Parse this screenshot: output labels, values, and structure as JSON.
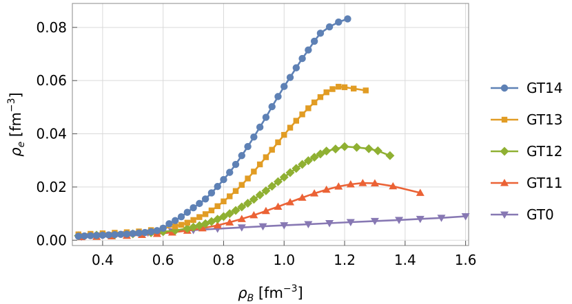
{
  "chart_data": {
    "type": "line",
    "xlabel": {
      "base": "ρ",
      "sub": "B",
      "unit_pre": " [fm",
      "unit_sup": "−3",
      "unit_post": "]"
    },
    "ylabel": {
      "base": "ρ",
      "sub": "e",
      "unit_pre": " [fm",
      "unit_sup": "−3",
      "unit_post": "]"
    },
    "xlim": [
      0.3,
      1.61
    ],
    "ylim": [
      -0.002,
      0.089
    ],
    "xticks": [
      0.4,
      0.6,
      0.8,
      1.0,
      1.2,
      1.4,
      1.6
    ],
    "xtick_labels": [
      "0.4",
      "0.6",
      "0.8",
      "1.0",
      "1.2",
      "1.4",
      "1.6"
    ],
    "yticks": [
      0.0,
      0.02,
      0.04,
      0.06,
      0.08
    ],
    "ytick_labels": [
      "0.00",
      "0.02",
      "0.04",
      "0.06",
      "0.08"
    ],
    "grid": true,
    "legend_position": "right",
    "series": [
      {
        "name": "GT14",
        "color": "#5e81b5",
        "marker": "circle",
        "x": [
          0.32,
          0.34,
          0.36,
          0.38,
          0.4,
          0.42,
          0.44,
          0.46,
          0.48,
          0.5,
          0.52,
          0.54,
          0.56,
          0.58,
          0.6,
          0.62,
          0.64,
          0.66,
          0.68,
          0.7,
          0.72,
          0.74,
          0.76,
          0.78,
          0.8,
          0.82,
          0.84,
          0.86,
          0.88,
          0.9,
          0.92,
          0.94,
          0.96,
          0.98,
          1.0,
          1.02,
          1.04,
          1.06,
          1.08,
          1.1,
          1.12,
          1.15,
          1.18,
          1.21
        ],
        "y": [
          0.0015,
          0.0016,
          0.0017,
          0.0018,
          0.0019,
          0.002,
          0.0021,
          0.0022,
          0.0023,
          0.0025,
          0.0027,
          0.0029,
          0.0032,
          0.0036,
          0.0045,
          0.0062,
          0.0074,
          0.0088,
          0.0105,
          0.0122,
          0.0138,
          0.0155,
          0.0178,
          0.0202,
          0.0228,
          0.0255,
          0.0285,
          0.0318,
          0.0352,
          0.0388,
          0.0425,
          0.0462,
          0.0502,
          0.054,
          0.0578,
          0.0612,
          0.0648,
          0.0683,
          0.0715,
          0.0748,
          0.0778,
          0.0802,
          0.082,
          0.0832
        ]
      },
      {
        "name": "GT13",
        "color": "#e19c24",
        "marker": "square",
        "x": [
          0.32,
          0.36,
          0.4,
          0.44,
          0.48,
          0.52,
          0.56,
          0.6,
          0.64,
          0.66,
          0.68,
          0.7,
          0.72,
          0.74,
          0.76,
          0.78,
          0.8,
          0.82,
          0.84,
          0.86,
          0.88,
          0.9,
          0.92,
          0.94,
          0.96,
          0.98,
          1.0,
          1.02,
          1.04,
          1.06,
          1.08,
          1.1,
          1.12,
          1.14,
          1.16,
          1.18,
          1.2,
          1.23,
          1.27
        ],
        "y": [
          0.0022,
          0.0024,
          0.0026,
          0.0028,
          0.003,
          0.0033,
          0.0038,
          0.0045,
          0.0052,
          0.0058,
          0.0066,
          0.0076,
          0.0087,
          0.0098,
          0.0112,
          0.0128,
          0.0146,
          0.0165,
          0.0185,
          0.0208,
          0.0232,
          0.0258,
          0.0285,
          0.0312,
          0.034,
          0.0368,
          0.0396,
          0.0423,
          0.0449,
          0.0473,
          0.0496,
          0.0518,
          0.0538,
          0.0556,
          0.0568,
          0.0577,
          0.0575,
          0.057,
          0.0563
        ]
      },
      {
        "name": "GT12",
        "color": "#8fb032",
        "marker": "diamond",
        "x": [
          0.32,
          0.38,
          0.44,
          0.5,
          0.56,
          0.6,
          0.64,
          0.68,
          0.7,
          0.72,
          0.74,
          0.76,
          0.78,
          0.8,
          0.82,
          0.84,
          0.86,
          0.88,
          0.9,
          0.92,
          0.94,
          0.96,
          0.98,
          1.0,
          1.02,
          1.04,
          1.06,
          1.08,
          1.1,
          1.12,
          1.14,
          1.17,
          1.2,
          1.24,
          1.28,
          1.31,
          1.35
        ],
        "y": [
          0.0017,
          0.0019,
          0.0021,
          0.0024,
          0.0028,
          0.0032,
          0.0037,
          0.0044,
          0.0049,
          0.0055,
          0.0062,
          0.007,
          0.0079,
          0.0089,
          0.01,
          0.0112,
          0.0125,
          0.0139,
          0.0154,
          0.017,
          0.0186,
          0.0203,
          0.022,
          0.0237,
          0.0254,
          0.027,
          0.0285,
          0.0299,
          0.0312,
          0.0324,
          0.0335,
          0.0343,
          0.0352,
          0.0349,
          0.0344,
          0.0336,
          0.0318
        ]
      },
      {
        "name": "GT11",
        "color": "#eb6235",
        "marker": "triangle-up",
        "x": [
          0.33,
          0.38,
          0.43,
          0.48,
          0.53,
          0.58,
          0.63,
          0.68,
          0.73,
          0.78,
          0.82,
          0.86,
          0.9,
          0.94,
          0.98,
          1.02,
          1.06,
          1.1,
          1.14,
          1.18,
          1.22,
          1.26,
          1.3,
          1.36,
          1.45
        ],
        "y": [
          0.0012,
          0.0013,
          0.0015,
          0.0017,
          0.002,
          0.0024,
          0.0029,
          0.0036,
          0.0045,
          0.0056,
          0.0067,
          0.008,
          0.0094,
          0.011,
          0.0126,
          0.0143,
          0.016,
          0.0176,
          0.019,
          0.0202,
          0.021,
          0.0215,
          0.0214,
          0.0203,
          0.0178
        ]
      },
      {
        "name": "GT0",
        "color": "#8778b3",
        "marker": "triangle-down",
        "x": [
          0.33,
          0.4,
          0.48,
          0.55,
          0.63,
          0.7,
          0.78,
          0.86,
          0.93,
          1.0,
          1.08,
          1.15,
          1.22,
          1.3,
          1.38,
          1.45,
          1.52,
          1.6
        ],
        "y": [
          0.0013,
          0.0018,
          0.0023,
          0.0028,
          0.0033,
          0.0038,
          0.0043,
          0.0048,
          0.0052,
          0.0056,
          0.006,
          0.0064,
          0.0068,
          0.0072,
          0.0076,
          0.008,
          0.0084,
          0.009
        ]
      }
    ]
  }
}
